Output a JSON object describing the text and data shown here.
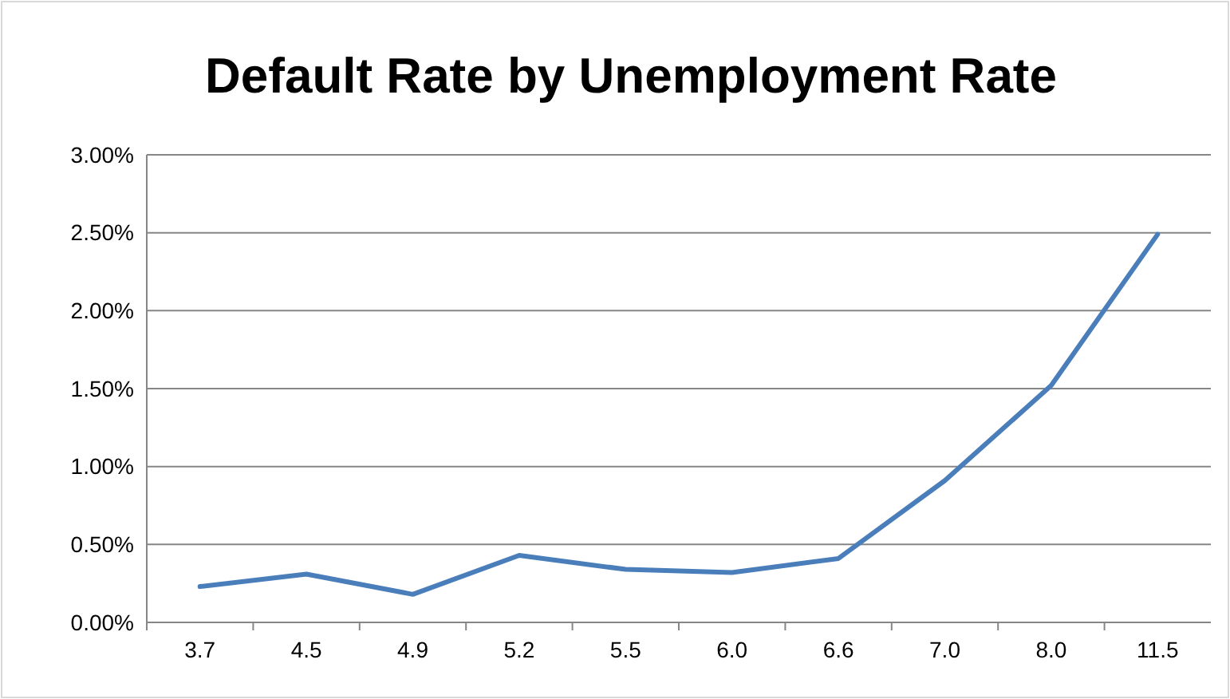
{
  "chart_data": {
    "type": "line",
    "title": "Default Rate by Unemployment Rate",
    "categories": [
      "3.7",
      "4.5",
      "4.9",
      "5.2",
      "5.5",
      "6.0",
      "6.6",
      "7.0",
      "8.0",
      "11.5"
    ],
    "series": [
      {
        "color": "#4a7ebb",
        "values": [
          0.23,
          0.31,
          0.18,
          0.43,
          0.34,
          0.32,
          0.41,
          0.91,
          1.52,
          2.49
        ]
      }
    ],
    "ylim": [
      0,
      3
    ],
    "yticks": [
      {
        "value": 0,
        "label": "0.00%"
      },
      {
        "value": 0.5,
        "label": "0.50%"
      },
      {
        "value": 1,
        "label": "1.00%"
      },
      {
        "value": 1.5,
        "label": "1.50%"
      },
      {
        "value": 2,
        "label": "2.00%"
      },
      {
        "value": 2.5,
        "label": "2.50%"
      },
      {
        "value": 3,
        "label": "3.00%"
      }
    ],
    "grid": "y",
    "marker": "none",
    "line_style": "solid"
  }
}
